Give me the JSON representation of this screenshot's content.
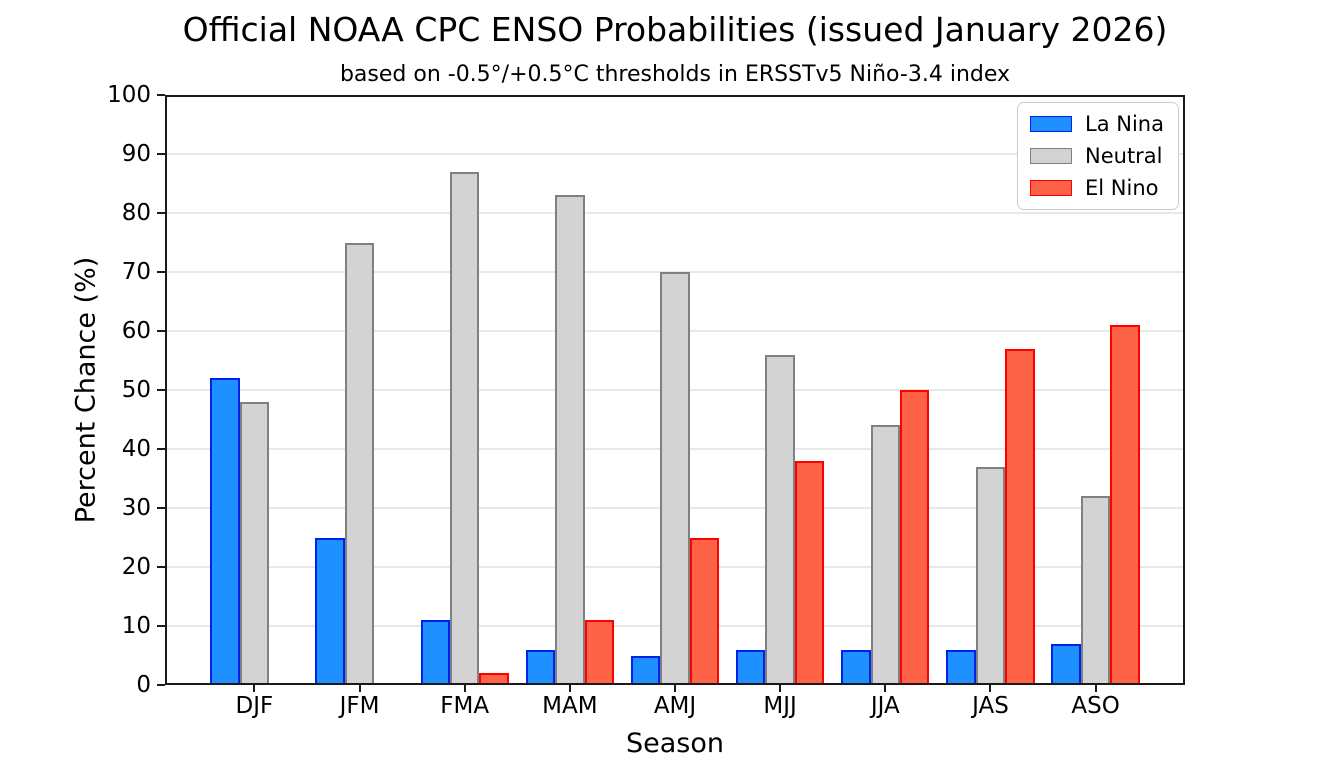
{
  "chart_data": {
    "type": "bar",
    "title": "Official NOAA CPC ENSO Probabilities (issued January 2026)",
    "subtitle": "based on -0.5°/+0.5°C thresholds in ERSSTv5 Niño-3.4 index",
    "xlabel": "Season",
    "ylabel": "Percent Chance (%)",
    "categories": [
      "DJF",
      "JFM",
      "FMA",
      "MAM",
      "AMJ",
      "MJJ",
      "JJA",
      "JAS",
      "ASO"
    ],
    "series": [
      {
        "name": "La Nina",
        "fill": "#1E90FF",
        "edge": "#0022EE",
        "values": [
          52,
          25,
          11,
          6,
          5,
          6,
          6,
          6,
          7
        ]
      },
      {
        "name": "Neutral",
        "fill": "#D3D3D3",
        "edge": "#808080",
        "values": [
          48,
          75,
          87,
          83,
          70,
          56,
          44,
          37,
          32
        ]
      },
      {
        "name": "El Nino",
        "fill": "#FF6347",
        "edge": "#FF0000",
        "values": [
          0,
          0,
          2,
          11,
          25,
          38,
          50,
          57,
          61
        ]
      }
    ],
    "ylim": [
      0,
      100
    ],
    "yticks": [
      0,
      10,
      20,
      30,
      40,
      50,
      60,
      70,
      80,
      90,
      100
    ],
    "grid": true,
    "legend_position": "upper right",
    "legend_order": [
      "La Nina",
      "Neutral",
      "El Nino"
    ]
  },
  "colors": {
    "background": "#FFFFFF",
    "spine": "#1A1A1A",
    "gridline": "#E8E8E8",
    "text": "#000000",
    "legend_border": "#CCCCCC"
  }
}
